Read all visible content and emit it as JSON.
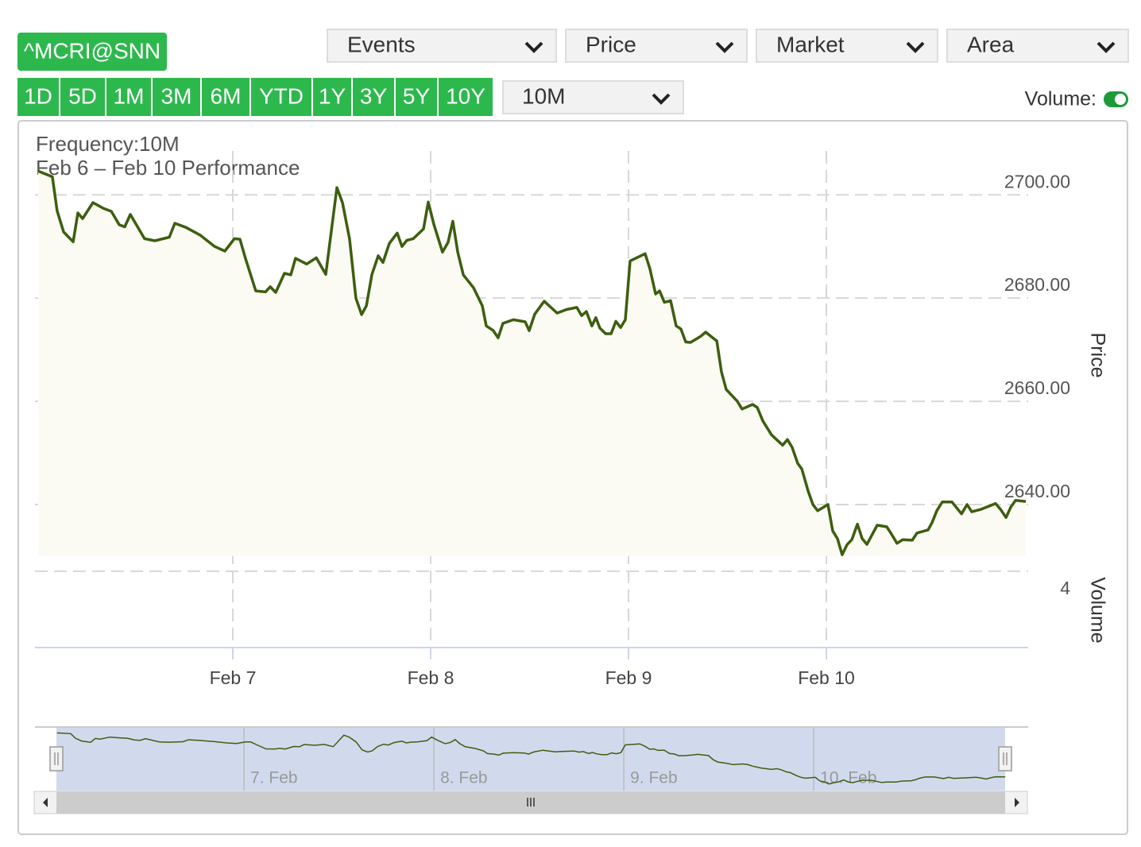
{
  "symbol": "^MCRI@SNN",
  "dropdowns": [
    "Events",
    "Price",
    "Market",
    "Area"
  ],
  "ranges": [
    "1D",
    "5D",
    "1M",
    "3M",
    "6M",
    "YTD",
    "1Y",
    "3Y",
    "5Y",
    "10Y"
  ],
  "frequency": "10M",
  "volume_toggle": "Volume:",
  "chart_data": {
    "type": "line",
    "title": "Frequency:10M",
    "subtitle": "Feb 6 – Feb 10 Performance",
    "y_label": "Price",
    "y2_label": "Volume",
    "color": "#3d5e0f",
    "grid": true,
    "x": [
      6.016,
      6.088,
      6.112,
      6.145,
      6.193,
      6.217,
      6.241,
      6.293,
      6.345,
      6.386,
      6.426,
      6.454,
      6.482,
      6.554,
      6.606,
      6.679,
      6.707,
      6.763,
      6.835,
      6.908,
      6.96,
      7.008,
      7.036,
      7.064,
      7.116,
      7.165,
      7.189,
      7.217,
      7.261,
      7.293,
      7.317,
      7.373,
      7.422,
      7.47,
      7.526,
      7.554,
      7.59,
      7.622,
      7.651,
      7.675,
      7.703,
      7.735,
      7.759,
      7.791,
      7.831,
      7.855,
      7.88,
      7.912,
      7.964,
      7.988,
      8.016,
      8.06,
      8.088,
      8.112,
      8.137,
      8.165,
      8.217,
      8.261,
      8.281,
      8.317,
      8.341,
      8.365,
      8.418,
      8.478,
      8.498,
      8.526,
      8.574,
      8.639,
      8.687,
      8.739,
      8.763,
      8.787,
      8.815,
      8.835,
      8.855,
      8.884,
      8.912,
      8.936,
      8.96,
      8.984,
      9.008,
      9.084,
      9.108,
      9.137,
      9.157,
      9.181,
      9.213,
      9.241,
      9.265,
      9.289,
      9.313,
      9.365,
      9.39,
      9.446,
      9.47,
      9.494,
      9.55,
      9.574,
      9.627,
      9.651,
      9.679,
      9.723,
      9.779,
      9.803,
      9.827,
      9.855,
      9.876,
      9.908,
      9.932,
      9.956,
      10.008,
      10.032,
      10.056,
      10.08,
      10.104,
      10.129,
      10.157,
      10.181,
      10.205,
      10.257,
      10.305,
      10.329,
      10.357,
      10.386,
      10.434,
      10.458,
      10.514,
      10.534,
      10.558,
      10.586,
      10.635,
      10.683,
      10.711,
      10.735,
      10.783,
      10.855,
      10.88,
      10.908,
      10.932,
      10.956,
      11.008
    ],
    "values": [
      2704.6,
      2703.5,
      2696.9,
      2692.8,
      2690.9,
      2696.5,
      2695.4,
      2698.5,
      2697.4,
      2696.8,
      2694.2,
      2693.8,
      2696.2,
      2691.5,
      2691.1,
      2691.8,
      2694.5,
      2693.7,
      2692.2,
      2690.0,
      2689.1,
      2691.5,
      2691.4,
      2687.7,
      2681.4,
      2681.2,
      2682.2,
      2681.1,
      2684.8,
      2684.5,
      2687.7,
      2686.6,
      2687.8,
      2684.6,
      2701.4,
      2698.5,
      2691.5,
      2680.0,
      2676.8,
      2678.5,
      2684.6,
      2688.2,
      2686.9,
      2690.6,
      2692.6,
      2690.0,
      2691.2,
      2691.5,
      2693.4,
      2698.6,
      2694.3,
      2688.9,
      2690.8,
      2694.9,
      2688.9,
      2684.5,
      2682.0,
      2678.5,
      2674.6,
      2673.7,
      2672.3,
      2675.1,
      2675.8,
      2675.4,
      2673.7,
      2676.9,
      2679.4,
      2677.1,
      2677.8,
      2678.2,
      2676.6,
      2677.4,
      2674.6,
      2676.2,
      2674.2,
      2673.1,
      2673.1,
      2675.5,
      2674.3,
      2675.8,
      2687.2,
      2688.6,
      2685.7,
      2680.8,
      2681.4,
      2679.2,
      2679.5,
      2674.6,
      2674.0,
      2671.5,
      2671.4,
      2672.6,
      2673.4,
      2671.7,
      2665.7,
      2662.3,
      2660.0,
      2658.5,
      2659.4,
      2658.8,
      2656.2,
      2653.5,
      2651.5,
      2652.6,
      2651.1,
      2648.0,
      2646.9,
      2642.6,
      2640.0,
      2638.8,
      2640.0,
      2634.9,
      2633.4,
      2630.3,
      2632.2,
      2633.2,
      2636.2,
      2633.4,
      2632.3,
      2636.0,
      2635.7,
      2634.3,
      2632.5,
      2633.2,
      2633.1,
      2634.5,
      2635.1,
      2636.5,
      2638.8,
      2640.5,
      2640.5,
      2638.2,
      2640.0,
      2638.6,
      2639.1,
      2640.2,
      2639.1,
      2637.5,
      2639.5,
      2640.8,
      2640.6
    ],
    "xlim": [
      6,
      11.02
    ],
    "xticks": [
      {
        "value": 7,
        "label": "Feb 7"
      },
      {
        "value": 8,
        "label": "Feb 8"
      },
      {
        "value": 9,
        "label": "Feb 9"
      },
      {
        "value": 10,
        "label": "Feb 10"
      }
    ],
    "ylim": [
      2630,
      2708.5
    ],
    "yticks": [
      {
        "value": 2640,
        "label": "2640.00"
      },
      {
        "value": 2660,
        "label": "2660.00"
      },
      {
        "value": 2680,
        "label": "2680.00"
      },
      {
        "value": 2700,
        "label": "2700.00"
      }
    ],
    "y2lim": [
      0,
      4.58
    ],
    "y2ticks": [
      4
    ],
    "navigator_ticks": [
      {
        "value": 7,
        "label": "7. Feb"
      },
      {
        "value": 8,
        "label": "8. Feb"
      },
      {
        "value": 9,
        "label": "9. Feb"
      },
      {
        "value": 10,
        "label": "10. Feb"
      }
    ]
  }
}
